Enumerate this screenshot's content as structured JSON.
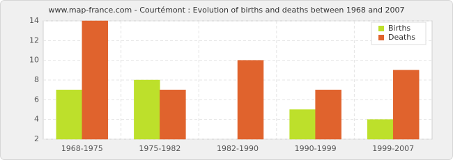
{
  "chart_data": {
    "type": "bar",
    "title": "www.map-france.com - Courtémont : Evolution of births and deaths between 1968 and 2007",
    "categories": [
      "1968-1975",
      "1975-1982",
      "1982-1990",
      "1990-1999",
      "1999-2007"
    ],
    "series": [
      {
        "name": "Births",
        "color": "#bde02b",
        "values": [
          7,
          8,
          2,
          5,
          4
        ]
      },
      {
        "name": "Deaths",
        "color": "#e0632d",
        "values": [
          14,
          7,
          10,
          7,
          9
        ]
      }
    ],
    "ylim": [
      2,
      14
    ],
    "yticks": [
      2,
      4,
      6,
      8,
      10,
      12,
      14
    ],
    "grid": true
  }
}
